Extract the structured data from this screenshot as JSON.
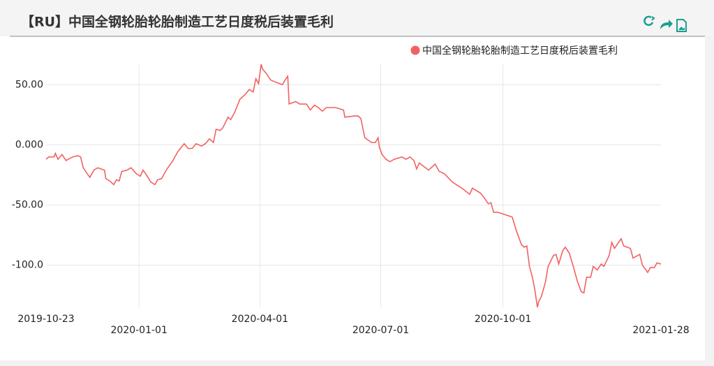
{
  "chart_data": {
    "type": "line",
    "title": "【RU】中国全钢轮胎轮胎制造工艺日度税后装置毛利",
    "x": [
      "2019-10-23",
      "2019-10-25",
      "2019-10-29",
      "2019-10-30",
      "2019-11-01",
      "2019-11-04",
      "2019-11-07",
      "2019-11-12",
      "2019-11-16",
      "2019-11-18",
      "2019-11-20",
      "2019-11-23",
      "2019-11-25",
      "2019-11-28",
      "2019-12-01",
      "2019-12-06",
      "2019-12-07",
      "2019-12-10",
      "2019-12-13",
      "2019-12-15",
      "2019-12-17",
      "2019-12-19",
      "2019-12-23",
      "2019-12-26",
      "2019-12-30",
      "2020-01-02",
      "2020-01-04",
      "2020-01-06",
      "2020-01-10",
      "2020-01-13",
      "2020-01-15",
      "2020-01-18",
      "2020-01-22",
      "2020-01-26",
      "2020-01-30",
      "2020-02-04",
      "2020-02-07",
      "2020-02-10",
      "2020-02-13",
      "2020-02-17",
      "2020-02-20",
      "2020-02-23",
      "2020-02-26",
      "2020-02-28",
      "2020-03-02",
      "2020-03-04",
      "2020-03-08",
      "2020-03-10",
      "2020-03-13",
      "2020-03-17",
      "2020-03-21",
      "2020-03-24",
      "2020-03-27",
      "2020-03-29",
      "2020-03-31",
      "2020-04-02",
      "2020-04-03",
      "2020-04-06",
      "2020-04-09",
      "2020-04-13",
      "2020-04-18",
      "2020-04-20",
      "2020-04-22",
      "2020-04-23",
      "2020-04-28",
      "2020-05-01",
      "2020-05-06",
      "2020-05-09",
      "2020-05-12",
      "2020-05-15",
      "2020-05-18",
      "2020-05-21",
      "2020-05-28",
      "2020-06-03",
      "2020-06-04",
      "2020-06-11",
      "2020-06-14",
      "2020-06-16",
      "2020-06-19",
      "2020-06-24",
      "2020-06-27",
      "2020-06-29",
      "2020-06-30",
      "2020-07-02",
      "2020-07-05",
      "2020-07-08",
      "2020-07-11",
      "2020-07-17",
      "2020-07-20",
      "2020-07-23",
      "2020-07-26",
      "2020-07-28",
      "2020-07-30",
      "2020-08-06",
      "2020-08-11",
      "2020-08-14",
      "2020-08-18",
      "2020-08-24",
      "2020-08-31",
      "2020-09-06",
      "2020-09-08",
      "2020-09-14",
      "2020-09-17",
      "2020-09-20",
      "2020-09-22",
      "2020-09-24",
      "2020-09-27",
      "2020-09-30",
      "2020-10-08",
      "2020-10-11",
      "2020-10-15",
      "2020-10-17",
      "2020-10-19",
      "2020-10-21",
      "2020-10-23",
      "2020-10-25",
      "2020-10-27",
      "2020-10-28",
      "2020-10-30",
      "2020-11-02",
      "2020-11-04",
      "2020-11-08",
      "2020-11-10",
      "2020-11-12",
      "2020-11-15",
      "2020-11-17",
      "2020-11-20",
      "2020-11-23",
      "2020-11-26",
      "2020-11-29",
      "2020-12-01",
      "2020-12-03",
      "2020-12-06",
      "2020-12-08",
      "2020-12-11",
      "2020-12-14",
      "2020-12-16",
      "2020-12-20",
      "2020-12-22",
      "2020-12-24",
      "2020-12-29",
      "2020-12-31",
      "2021-01-05",
      "2021-01-07",
      "2021-01-12",
      "2021-01-14",
      "2021-01-18",
      "2021-01-20",
      "2021-01-23",
      "2021-01-25",
      "2021-01-28"
    ],
    "series": [
      {
        "name": "中国全钢轮胎轮胎制造工艺日度税后装置毛利",
        "color": "#f26161",
        "values": [
          -12,
          -10,
          -10,
          -7,
          -12,
          -8,
          -13,
          -10,
          -9,
          -10,
          -19,
          -24,
          -27,
          -21,
          -19,
          -21,
          -28,
          -30,
          -33,
          -29,
          -30,
          -22,
          -21,
          -19,
          -24,
          -26,
          -21,
          -24,
          -31,
          -33,
          -29,
          -28,
          -20,
          -14,
          -6,
          1,
          -3,
          -3,
          1,
          -1,
          1,
          5,
          2,
          13,
          12,
          14,
          23,
          21,
          27,
          38,
          42,
          46,
          44,
          55,
          51,
          67,
          63,
          59,
          54,
          52,
          50,
          54,
          57,
          34,
          36,
          34,
          34,
          29,
          33,
          31,
          28,
          31,
          31,
          29,
          23,
          24,
          24,
          22,
          6,
          2,
          2,
          6,
          -2,
          -8,
          -12,
          -14,
          -12,
          -10,
          -12,
          -10,
          -13,
          -20,
          -15,
          -21,
          -16,
          -22,
          -24,
          -31,
          -36,
          -41,
          -36,
          -40,
          -44,
          -49,
          -48,
          -56,
          -56,
          -57,
          -60,
          -71,
          -83,
          -85,
          -84,
          -101,
          -109,
          -120,
          -135,
          -130,
          -126,
          -114,
          -101,
          -92,
          -91,
          -99,
          -88,
          -85,
          -90,
          -101,
          -113,
          -122,
          -123,
          -110,
          -110,
          -101,
          -104,
          -99,
          -101,
          -92,
          -81,
          -86,
          -78,
          -84,
          -86,
          -94,
          -91,
          -100,
          -106,
          -102,
          -102,
          -98,
          -99
        ]
      }
    ],
    "xlim": [
      "2019-10-23",
      "2021-01-28"
    ],
    "xticks": [
      "2019-10-23",
      "2020-01-01",
      "2020-04-01",
      "2020-07-01",
      "2020-10-01",
      "2021-01-28"
    ],
    "ylim": [
      -135,
      67
    ],
    "yticks": [
      {
        "value": 50,
        "label": "50.00"
      },
      {
        "value": 0,
        "label": "0.000"
      },
      {
        "value": -50,
        "label": "-50.00"
      },
      {
        "value": -100,
        "label": "-100.0"
      }
    ],
    "grid": true
  }
}
